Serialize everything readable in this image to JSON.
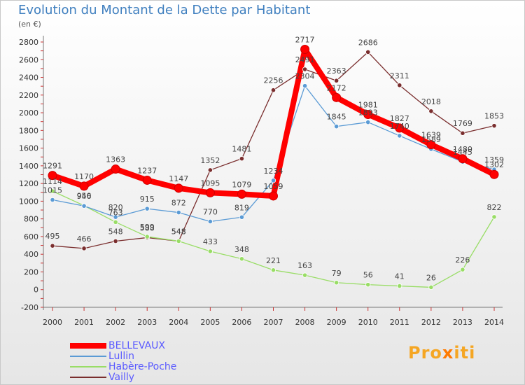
{
  "chart_data": {
    "type": "line",
    "title": "Evolution du Montant de la Dette par Habitant",
    "subtitle": "(en €)",
    "x": [
      "2000",
      "2001",
      "2002",
      "2003",
      "2004",
      "2005",
      "2006",
      "2007",
      "2008",
      "2009",
      "2010",
      "2011",
      "2012",
      "2013",
      "2014"
    ],
    "ylim": [
      -200,
      2800
    ],
    "yticks": [
      -200,
      0,
      200,
      400,
      600,
      800,
      1000,
      1200,
      1400,
      1600,
      1800,
      2000,
      2200,
      2400,
      2600,
      2800
    ],
    "grid": false,
    "legend_position": "bottom-left",
    "series": [
      {
        "name": "BELLEVAUX",
        "color": "#ff0000",
        "values": [
          1291,
          1170,
          1363,
          1237,
          1147,
          1095,
          1079,
          1059,
          2717,
          2172,
          1981,
          1827,
          1639,
          1480,
          1302
        ]
      },
      {
        "name": "Lullin",
        "color": "#5b9bd5",
        "values": [
          1015,
          946,
          820,
          915,
          872,
          770,
          819,
          1234,
          2304,
          1845,
          1893,
          1740,
          1589,
          1445,
          1359
        ]
      },
      {
        "name": "Habère-Poche",
        "color": "#99dd66",
        "values": [
          1114,
          950,
          763,
          599,
          548,
          433,
          348,
          221,
          163,
          79,
          56,
          41,
          26,
          226,
          822
        ]
      },
      {
        "name": "Vailly",
        "color": "#7a2e2e",
        "values": [
          495,
          466,
          548,
          588,
          548,
          1352,
          1481,
          2256,
          2491,
          2363,
          2686,
          2311,
          2018,
          1769,
          1853
        ]
      }
    ]
  },
  "brand": {
    "pre": "Pro",
    "x": "x",
    "post": "iti"
  }
}
